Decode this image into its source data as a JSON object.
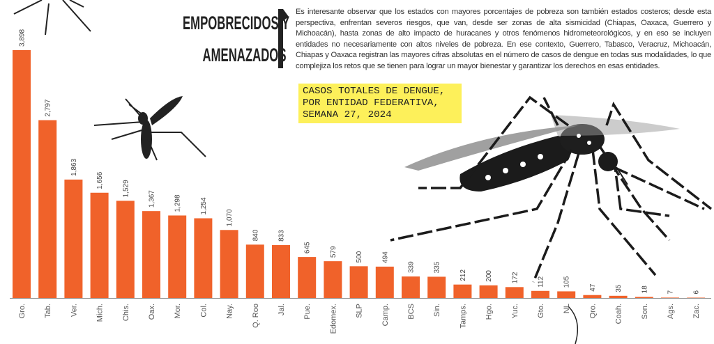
{
  "heading": [
    "EMPOBRECIDOS Y",
    "AMENAZADOS"
  ],
  "paragraph": "Es interesante observar que los estados con mayores porcentajes de pobreza son también estados costeros; desde esta perspectiva, enfrentan severos riesgos, que van, desde ser zonas de alta sismicidad (Chiapas, Oaxaca, Guerrero y Michoacán), hasta zonas de alto impacto de huracanes y otros fenómenos hidrometeorológicos, y en eso se incluyen entidades no necesariamente con altos niveles de pobreza. En ese contexto, Guerrero, Tabasco, Veracruz, Michoacán, Chiapas y Oaxaca registran las mayores cifras absolutas en el número de casos de dengue en todas sus modalidades, lo que complejiza los retos que se tienen para lograr un mayor bienestar y garantizar los derechos en esas entidades.",
  "chart_data": {
    "type": "bar",
    "title": "CASOS TOTALES DE DENGUE, POR ENTIDAD FEDERATIVA, SEMANA 27, 2024",
    "categories": [
      "Gro.",
      "Tab.",
      "Ver.",
      "Mich.",
      "Chis.",
      "Oax.",
      "Mor.",
      "Col.",
      "Nay.",
      "Q. Roo",
      "Jal.",
      "Pue.",
      "Edomex.",
      "SLP",
      "Camp.",
      "BCS",
      "Sin.",
      "Tamps.",
      "Hgo.",
      "Yuc.",
      "Gto.",
      "NL",
      "Qro.",
      "Coah.",
      "Son.",
      "Ags.",
      "Zac."
    ],
    "values": [
      3898,
      2797,
      1863,
      1656,
      1529,
      1367,
      1298,
      1254,
      1070,
      840,
      833,
      645,
      579,
      500,
      494,
      339,
      335,
      212,
      200,
      172,
      112,
      105,
      47,
      35,
      18,
      7,
      6
    ],
    "value_labels": [
      "3,898",
      "2,797",
      "1,863",
      "1,656",
      "1,529",
      "1,367",
      "1,298",
      "1,254",
      "1,070",
      "840",
      "833",
      "645",
      "579",
      "500",
      "494",
      "339",
      "335",
      "212",
      "200",
      "172",
      "112",
      "105",
      "47",
      "35",
      "18",
      "7",
      "6"
    ],
    "color": "#f0622a"
  }
}
